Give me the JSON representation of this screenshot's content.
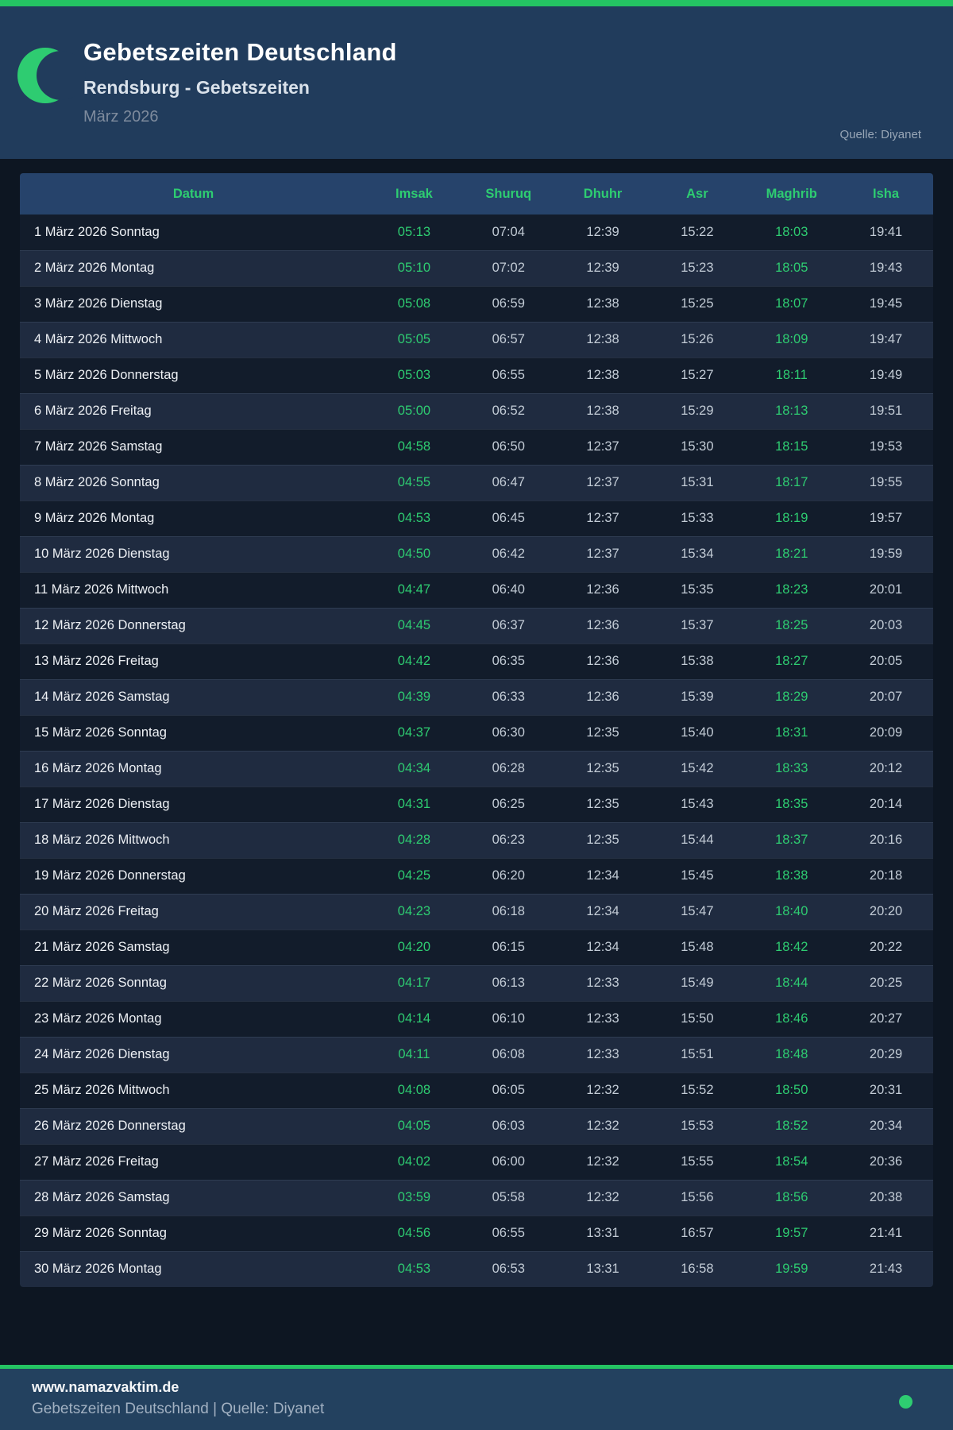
{
  "colors": {
    "accent_green": "#2ecc71",
    "bar_green": "#24c463",
    "header_bg": "#213c5c",
    "page_bg": "#0d1622",
    "table_header_bg": "#26436b",
    "row_odd_bg": "#121c2b",
    "row_even_bg": "#1f2b40",
    "footer_bg": "#23415f"
  },
  "header": {
    "icon": "crescent-moon-icon",
    "title": "Gebetszeiten Deutschland",
    "subtitle": "Rendsburg - Gebetszeiten",
    "month": "März 2026",
    "source": "Quelle: Diyanet"
  },
  "table": {
    "columns": [
      "Datum",
      "Imsak",
      "Shuruq",
      "Dhuhr",
      "Asr",
      "Maghrib",
      "Isha"
    ],
    "green_columns": [
      "Imsak",
      "Maghrib"
    ],
    "rows": [
      {
        "date": "1 März 2026 Sonntag",
        "times": [
          "05:13",
          "07:04",
          "12:39",
          "15:22",
          "18:03",
          "19:41"
        ]
      },
      {
        "date": "2 März 2026 Montag",
        "times": [
          "05:10",
          "07:02",
          "12:39",
          "15:23",
          "18:05",
          "19:43"
        ]
      },
      {
        "date": "3 März 2026 Dienstag",
        "times": [
          "05:08",
          "06:59",
          "12:38",
          "15:25",
          "18:07",
          "19:45"
        ]
      },
      {
        "date": "4 März 2026 Mittwoch",
        "times": [
          "05:05",
          "06:57",
          "12:38",
          "15:26",
          "18:09",
          "19:47"
        ]
      },
      {
        "date": "5 März 2026 Donnerstag",
        "times": [
          "05:03",
          "06:55",
          "12:38",
          "15:27",
          "18:11",
          "19:49"
        ]
      },
      {
        "date": "6 März 2026 Freitag",
        "times": [
          "05:00",
          "06:52",
          "12:38",
          "15:29",
          "18:13",
          "19:51"
        ]
      },
      {
        "date": "7 März 2026 Samstag",
        "times": [
          "04:58",
          "06:50",
          "12:37",
          "15:30",
          "18:15",
          "19:53"
        ]
      },
      {
        "date": "8 März 2026 Sonntag",
        "times": [
          "04:55",
          "06:47",
          "12:37",
          "15:31",
          "18:17",
          "19:55"
        ]
      },
      {
        "date": "9 März 2026 Montag",
        "times": [
          "04:53",
          "06:45",
          "12:37",
          "15:33",
          "18:19",
          "19:57"
        ]
      },
      {
        "date": "10 März 2026 Dienstag",
        "times": [
          "04:50",
          "06:42",
          "12:37",
          "15:34",
          "18:21",
          "19:59"
        ]
      },
      {
        "date": "11 März 2026 Mittwoch",
        "times": [
          "04:47",
          "06:40",
          "12:36",
          "15:35",
          "18:23",
          "20:01"
        ]
      },
      {
        "date": "12 März 2026 Donnerstag",
        "times": [
          "04:45",
          "06:37",
          "12:36",
          "15:37",
          "18:25",
          "20:03"
        ]
      },
      {
        "date": "13 März 2026 Freitag",
        "times": [
          "04:42",
          "06:35",
          "12:36",
          "15:38",
          "18:27",
          "20:05"
        ]
      },
      {
        "date": "14 März 2026 Samstag",
        "times": [
          "04:39",
          "06:33",
          "12:36",
          "15:39",
          "18:29",
          "20:07"
        ]
      },
      {
        "date": "15 März 2026 Sonntag",
        "times": [
          "04:37",
          "06:30",
          "12:35",
          "15:40",
          "18:31",
          "20:09"
        ]
      },
      {
        "date": "16 März 2026 Montag",
        "times": [
          "04:34",
          "06:28",
          "12:35",
          "15:42",
          "18:33",
          "20:12"
        ]
      },
      {
        "date": "17 März 2026 Dienstag",
        "times": [
          "04:31",
          "06:25",
          "12:35",
          "15:43",
          "18:35",
          "20:14"
        ]
      },
      {
        "date": "18 März 2026 Mittwoch",
        "times": [
          "04:28",
          "06:23",
          "12:35",
          "15:44",
          "18:37",
          "20:16"
        ]
      },
      {
        "date": "19 März 2026 Donnerstag",
        "times": [
          "04:25",
          "06:20",
          "12:34",
          "15:45",
          "18:38",
          "20:18"
        ]
      },
      {
        "date": "20 März 2026 Freitag",
        "times": [
          "04:23",
          "06:18",
          "12:34",
          "15:47",
          "18:40",
          "20:20"
        ]
      },
      {
        "date": "21 März 2026 Samstag",
        "times": [
          "04:20",
          "06:15",
          "12:34",
          "15:48",
          "18:42",
          "20:22"
        ]
      },
      {
        "date": "22 März 2026 Sonntag",
        "times": [
          "04:17",
          "06:13",
          "12:33",
          "15:49",
          "18:44",
          "20:25"
        ]
      },
      {
        "date": "23 März 2026 Montag",
        "times": [
          "04:14",
          "06:10",
          "12:33",
          "15:50",
          "18:46",
          "20:27"
        ]
      },
      {
        "date": "24 März 2026 Dienstag",
        "times": [
          "04:11",
          "06:08",
          "12:33",
          "15:51",
          "18:48",
          "20:29"
        ]
      },
      {
        "date": "25 März 2026 Mittwoch",
        "times": [
          "04:08",
          "06:05",
          "12:32",
          "15:52",
          "18:50",
          "20:31"
        ]
      },
      {
        "date": "26 März 2026 Donnerstag",
        "times": [
          "04:05",
          "06:03",
          "12:32",
          "15:53",
          "18:52",
          "20:34"
        ]
      },
      {
        "date": "27 März 2026 Freitag",
        "times": [
          "04:02",
          "06:00",
          "12:32",
          "15:55",
          "18:54",
          "20:36"
        ]
      },
      {
        "date": "28 März 2026 Samstag",
        "times": [
          "03:59",
          "05:58",
          "12:32",
          "15:56",
          "18:56",
          "20:38"
        ]
      },
      {
        "date": "29 März 2026 Sonntag",
        "times": [
          "04:56",
          "06:55",
          "13:31",
          "16:57",
          "19:57",
          "21:41"
        ]
      },
      {
        "date": "30 März 2026 Montag",
        "times": [
          "04:53",
          "06:53",
          "13:31",
          "16:58",
          "19:59",
          "21:43"
        ]
      }
    ]
  },
  "footer": {
    "website": "www.namazvaktim.de",
    "tagline": "Gebetszeiten Deutschland | Quelle: Diyanet",
    "dot": "green-status-dot"
  }
}
